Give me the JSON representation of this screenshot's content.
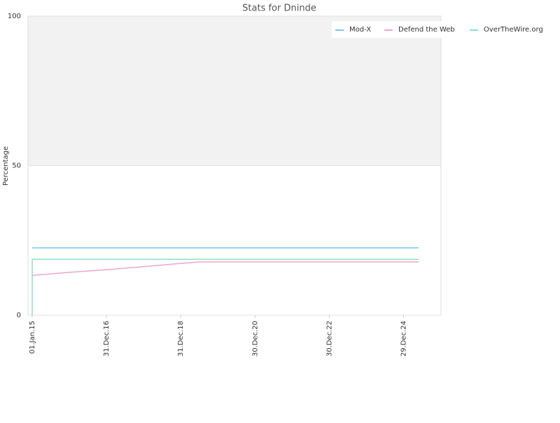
{
  "chart_data": {
    "type": "line",
    "title": "Stats for Dninde",
    "ylabel": "Percentage",
    "xlim": [
      "2014-11-21",
      "2026-01-01"
    ],
    "xticks": [
      {
        "value": "2015-01-01",
        "label": "01.Jan.15"
      },
      {
        "value": "2016-12-31",
        "label": "31.Dec.16"
      },
      {
        "value": "2018-12-31",
        "label": "31.Dec.18"
      },
      {
        "value": "2020-12-30",
        "label": "30.Dec.20"
      },
      {
        "value": "2022-12-30",
        "label": "30.Dec.22"
      },
      {
        "value": "2024-12-29",
        "label": "29.Dec.24"
      }
    ],
    "ylim": [
      0,
      100
    ],
    "yticks": [
      0,
      50,
      100
    ],
    "shaded_band": [
      50,
      100
    ],
    "legend": "top-right",
    "series": [
      {
        "name": "Mod-X",
        "color": "#7cc3ee",
        "x": [
          "2015-01-01",
          "2025-05-28"
        ],
        "values": [
          22.5,
          22.5
        ]
      },
      {
        "name": "Defend the Web",
        "color": "#eaa6cf",
        "x": [
          "2015-01-01",
          "2016-01-01",
          "2017-01-01",
          "2018-01-01",
          "2019-01-01",
          "2019-07-01",
          "2025-05-28"
        ],
        "values": [
          13.3,
          14.3,
          15.2,
          16.2,
          17.3,
          17.8,
          17.8
        ]
      },
      {
        "name": "OverTheWire.org",
        "color": "#8fe0c0",
        "x": [
          "2015-01-01",
          "2015-01-02",
          "2025-05-28"
        ],
        "values": [
          0,
          18.7,
          18.7
        ]
      }
    ]
  }
}
